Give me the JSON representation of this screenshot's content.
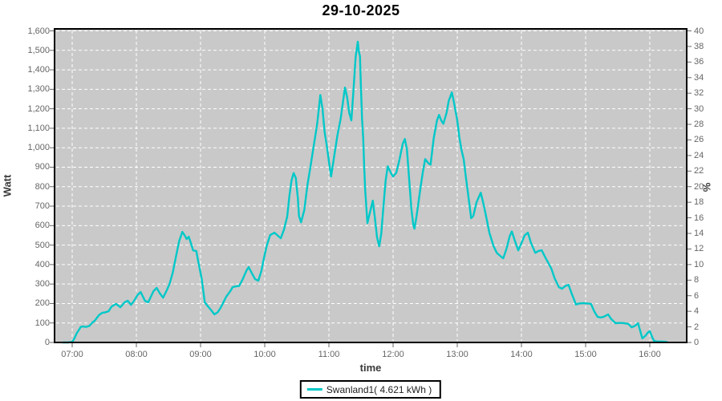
{
  "window": {
    "title": "29-10-2025"
  },
  "colors": {
    "plot_background": "#c9c9c9",
    "gridline": "#ffffff",
    "plot_border": "#000000",
    "series_line": "#00c8c8",
    "tick_text": "#666666",
    "axis_title_text": "#3a3a3a",
    "chart_title_text": "#000000"
  },
  "chart_data": {
    "type": "line",
    "title": "29-10-2025",
    "xlabel": "time",
    "ylabel_left": "Watt",
    "ylabel_right": "%",
    "grid": "white dashed on gray, hourly vertical + 100 W horizontal",
    "legend_position": "bottom-center boxed",
    "axes": {
      "y_left": {
        "min": 0,
        "max": 1600,
        "step": 100
      },
      "y_right": {
        "min": 0,
        "max": 40,
        "step": 2
      },
      "x_start_hour": 7,
      "x_end_hour": 16
    },
    "y_left_ticks": [
      "0",
      "100",
      "200",
      "300",
      "400",
      "500",
      "600",
      "700",
      "800",
      "900",
      "1,000",
      "1,100",
      "1,200",
      "1,300",
      "1,400",
      "1,500",
      "1,600"
    ],
    "y_right_ticks": [
      "0",
      "2",
      "4",
      "6",
      "8",
      "10",
      "12",
      "14",
      "16",
      "18",
      "20",
      "22",
      "24",
      "26",
      "28",
      "30",
      "32",
      "34",
      "36",
      "38",
      "40"
    ],
    "x_ticks": [
      "07:00",
      "08:00",
      "09:00",
      "10:00",
      "11:00",
      "12:00",
      "13:00",
      "14:00",
      "15:00",
      "16:00"
    ],
    "series": [
      {
        "name": "Swanland1( 4.621 kWh )",
        "color": "#00c8c8",
        "points_min_after_0700_vs_watt": [
          [
            -9,
            0
          ],
          [
            -4,
            0
          ],
          [
            0,
            3
          ],
          [
            2,
            20
          ],
          [
            4,
            45
          ],
          [
            6,
            62
          ],
          [
            8,
            80
          ],
          [
            10,
            82
          ],
          [
            13,
            80
          ],
          [
            16,
            85
          ],
          [
            19,
            103
          ],
          [
            21,
            111
          ],
          [
            25,
            140
          ],
          [
            28,
            152
          ],
          [
            31,
            155
          ],
          [
            34,
            160
          ],
          [
            37,
            185
          ],
          [
            41,
            198
          ],
          [
            45,
            181
          ],
          [
            49,
            206
          ],
          [
            52,
            214
          ],
          [
            55,
            193
          ],
          [
            58,
            215
          ],
          [
            61,
            243
          ],
          [
            64,
            259
          ],
          [
            68,
            214
          ],
          [
            71,
            206
          ],
          [
            76,
            263
          ],
          [
            79,
            280
          ],
          [
            82,
            252
          ],
          [
            85,
            230
          ],
          [
            88,
            263
          ],
          [
            91,
            300
          ],
          [
            94,
            358
          ],
          [
            97,
            440
          ],
          [
            100,
            520
          ],
          [
            103,
            568
          ],
          [
            105,
            551
          ],
          [
            107,
            531
          ],
          [
            109,
            543
          ],
          [
            111,
            510
          ],
          [
            113,
            473
          ],
          [
            116,
            469
          ],
          [
            118,
            412
          ],
          [
            121,
            330
          ],
          [
            124,
            206
          ],
          [
            127,
            185
          ],
          [
            130,
            165
          ],
          [
            133,
            144
          ],
          [
            136,
            155
          ],
          [
            139,
            180
          ],
          [
            144,
            235
          ],
          [
            148,
            265
          ],
          [
            150,
            284
          ],
          [
            153,
            288
          ],
          [
            156,
            290
          ],
          [
            159,
            320
          ],
          [
            163,
            370
          ],
          [
            165,
            387
          ],
          [
            168,
            355
          ],
          [
            171,
            325
          ],
          [
            174,
            317
          ],
          [
            177,
            370
          ],
          [
            179,
            428
          ],
          [
            182,
            500
          ],
          [
            185,
            551
          ],
          [
            189,
            564
          ],
          [
            192,
            550
          ],
          [
            195,
            535
          ],
          [
            198,
            580
          ],
          [
            201,
            646
          ],
          [
            203,
            750
          ],
          [
            205,
            830
          ],
          [
            207,
            870
          ],
          [
            209,
            845
          ],
          [
            211,
            740
          ],
          [
            212,
            650
          ],
          [
            214,
            617
          ],
          [
            217,
            680
          ],
          [
            220,
            810
          ],
          [
            223,
            910
          ],
          [
            226,
            1016
          ],
          [
            229,
            1120
          ],
          [
            232,
            1270
          ],
          [
            234,
            1200
          ],
          [
            236,
            1080
          ],
          [
            238,
            1012
          ],
          [
            240,
            930
          ],
          [
            242,
            852
          ],
          [
            245,
            960
          ],
          [
            248,
            1066
          ],
          [
            251,
            1150
          ],
          [
            255,
            1309
          ],
          [
            257,
            1260
          ],
          [
            259,
            1180
          ],
          [
            261,
            1140
          ],
          [
            263,
            1300
          ],
          [
            265,
            1465
          ],
          [
            267,
            1545
          ],
          [
            268,
            1495
          ],
          [
            269,
            1470
          ],
          [
            270,
            1300
          ],
          [
            271,
            1150
          ],
          [
            272,
            1053
          ],
          [
            273,
            900
          ],
          [
            274,
            778
          ],
          [
            276,
            613
          ],
          [
            278,
            660
          ],
          [
            281,
            728
          ],
          [
            283,
            640
          ],
          [
            285,
            540
          ],
          [
            287,
            494
          ],
          [
            289,
            560
          ],
          [
            291,
            700
          ],
          [
            293,
            830
          ],
          [
            295,
            905
          ],
          [
            298,
            870
          ],
          [
            300,
            852
          ],
          [
            303,
            872
          ],
          [
            306,
            940
          ],
          [
            309,
            1020
          ],
          [
            311,
            1045
          ],
          [
            313,
            990
          ],
          [
            315,
            840
          ],
          [
            317,
            690
          ],
          [
            319,
            600
          ],
          [
            320,
            584
          ],
          [
            322,
            650
          ],
          [
            324,
            730
          ],
          [
            326,
            810
          ],
          [
            328,
            880
          ],
          [
            330,
            942
          ],
          [
            333,
            920
          ],
          [
            335,
            913
          ],
          [
            338,
            1050
          ],
          [
            341,
            1140
          ],
          [
            343,
            1169
          ],
          [
            345,
            1140
          ],
          [
            347,
            1123
          ],
          [
            350,
            1180
          ],
          [
            352,
            1240
          ],
          [
            355,
            1284
          ],
          [
            357,
            1230
          ],
          [
            360,
            1140
          ],
          [
            362,
            1050
          ],
          [
            364,
            988
          ],
          [
            366,
            942
          ],
          [
            368,
            850
          ],
          [
            370,
            769
          ],
          [
            373,
            638
          ],
          [
            375,
            650
          ],
          [
            378,
            720
          ],
          [
            382,
            769
          ],
          [
            385,
            700
          ],
          [
            388,
            620
          ],
          [
            390,
            564
          ],
          [
            394,
            494
          ],
          [
            397,
            460
          ],
          [
            400,
            445
          ],
          [
            403,
            432
          ],
          [
            406,
            480
          ],
          [
            409,
            545
          ],
          [
            411,
            570
          ],
          [
            414,
            520
          ],
          [
            417,
            473
          ],
          [
            420,
            510
          ],
          [
            423,
            550
          ],
          [
            426,
            564
          ],
          [
            429,
            510
          ],
          [
            433,
            460
          ],
          [
            436,
            470
          ],
          [
            439,
            473
          ],
          [
            442,
            440
          ],
          [
            445,
            410
          ],
          [
            448,
            379
          ],
          [
            451,
            330
          ],
          [
            455,
            284
          ],
          [
            458,
            276
          ],
          [
            461,
            290
          ],
          [
            464,
            296
          ],
          [
            467,
            250
          ],
          [
            471,
            195
          ],
          [
            474,
            200
          ],
          [
            478,
            202
          ],
          [
            482,
            200
          ],
          [
            485,
            198
          ],
          [
            488,
            160
          ],
          [
            491,
            132
          ],
          [
            494,
            128
          ],
          [
            497,
            132
          ],
          [
            501,
            144
          ],
          [
            504,
            120
          ],
          [
            508,
            99
          ],
          [
            511,
            100
          ],
          [
            514,
            100
          ],
          [
            517,
            98
          ],
          [
            520,
            95
          ],
          [
            523,
            78
          ],
          [
            526,
            85
          ],
          [
            529,
            99
          ],
          [
            531,
            60
          ],
          [
            533,
            21
          ],
          [
            536,
            35
          ],
          [
            538,
            50
          ],
          [
            540,
            58
          ],
          [
            542,
            30
          ],
          [
            544,
            8
          ],
          [
            547,
            5
          ],
          [
            550,
            5
          ],
          [
            553,
            4
          ],
          [
            556,
            3
          ]
        ]
      }
    ]
  },
  "legend": {
    "entry_label": "Swanland1( 4.621 kWh )"
  }
}
